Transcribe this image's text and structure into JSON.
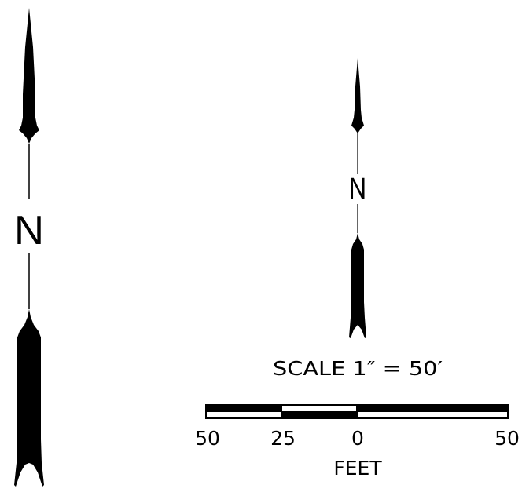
{
  "north_arrow_large": {
    "label": "N"
  },
  "north_arrow_small": {
    "label": "N"
  },
  "scale_bar": {
    "scale_text": "SCALE 1″ = 50′",
    "tick_labels": [
      "50",
      "25",
      "0",
      "50"
    ],
    "units_label": "FEET"
  },
  "colors": {
    "ink": "#000000",
    "paper": "#ffffff"
  }
}
